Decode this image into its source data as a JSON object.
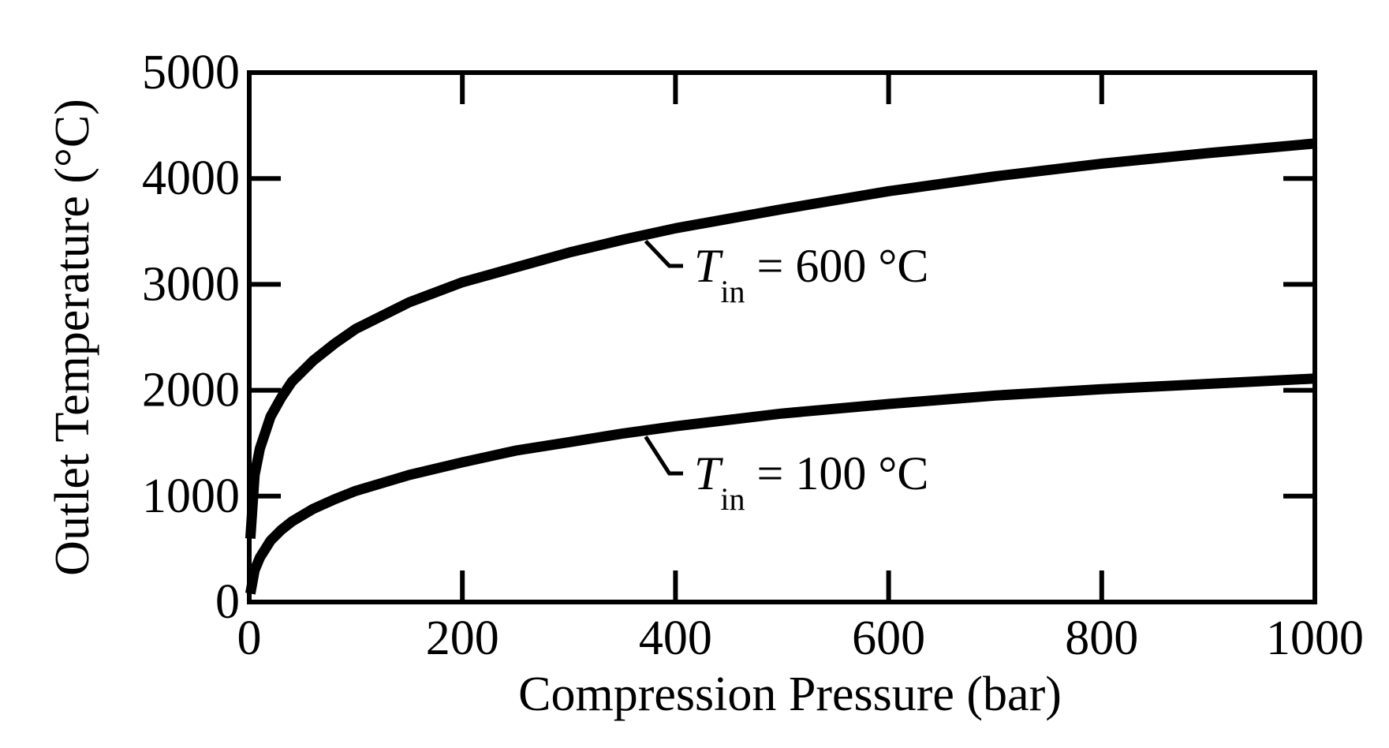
{
  "chart_data": {
    "type": "line",
    "title": "",
    "xlabel": "Compression Pressure (bar)",
    "ylabel": "Outlet Temperature (°C)",
    "xlim": [
      0,
      1000
    ],
    "ylim": [
      0,
      5000
    ],
    "xticks": [
      0,
      200,
      400,
      600,
      800,
      1000
    ],
    "xtick_labels": [
      "0",
      "200",
      "400",
      "600",
      "800",
      "1000"
    ],
    "yticks": [
      0,
      1000,
      2000,
      3000,
      4000,
      5000
    ],
    "ytick_labels": [
      "0",
      "1000",
      "2000",
      "3000",
      "4000",
      "5000"
    ],
    "grid": false,
    "series": [
      {
        "label_main": "T",
        "label_sub": "in",
        "label_rest": " = 600 °C",
        "x": [
          1,
          5,
          10,
          20,
          30,
          40,
          60,
          80,
          100,
          150,
          200,
          250,
          300,
          350,
          400,
          500,
          600,
          700,
          800,
          900,
          1000
        ],
        "y": [
          600,
          1200,
          1450,
          1750,
          1930,
          2080,
          2280,
          2440,
          2580,
          2830,
          3020,
          3160,
          3300,
          3420,
          3530,
          3710,
          3880,
          4020,
          4140,
          4240,
          4330
        ]
      },
      {
        "label_main": "T",
        "label_sub": "in",
        "label_rest": " = 100 °C",
        "x": [
          1,
          5,
          10,
          20,
          30,
          40,
          60,
          80,
          100,
          150,
          200,
          250,
          300,
          350,
          400,
          500,
          600,
          700,
          800,
          900,
          1000
        ],
        "y": [
          80,
          300,
          420,
          580,
          680,
          760,
          880,
          970,
          1050,
          1200,
          1320,
          1430,
          1510,
          1590,
          1660,
          1780,
          1870,
          1950,
          2010,
          2060,
          2110
        ]
      }
    ]
  }
}
